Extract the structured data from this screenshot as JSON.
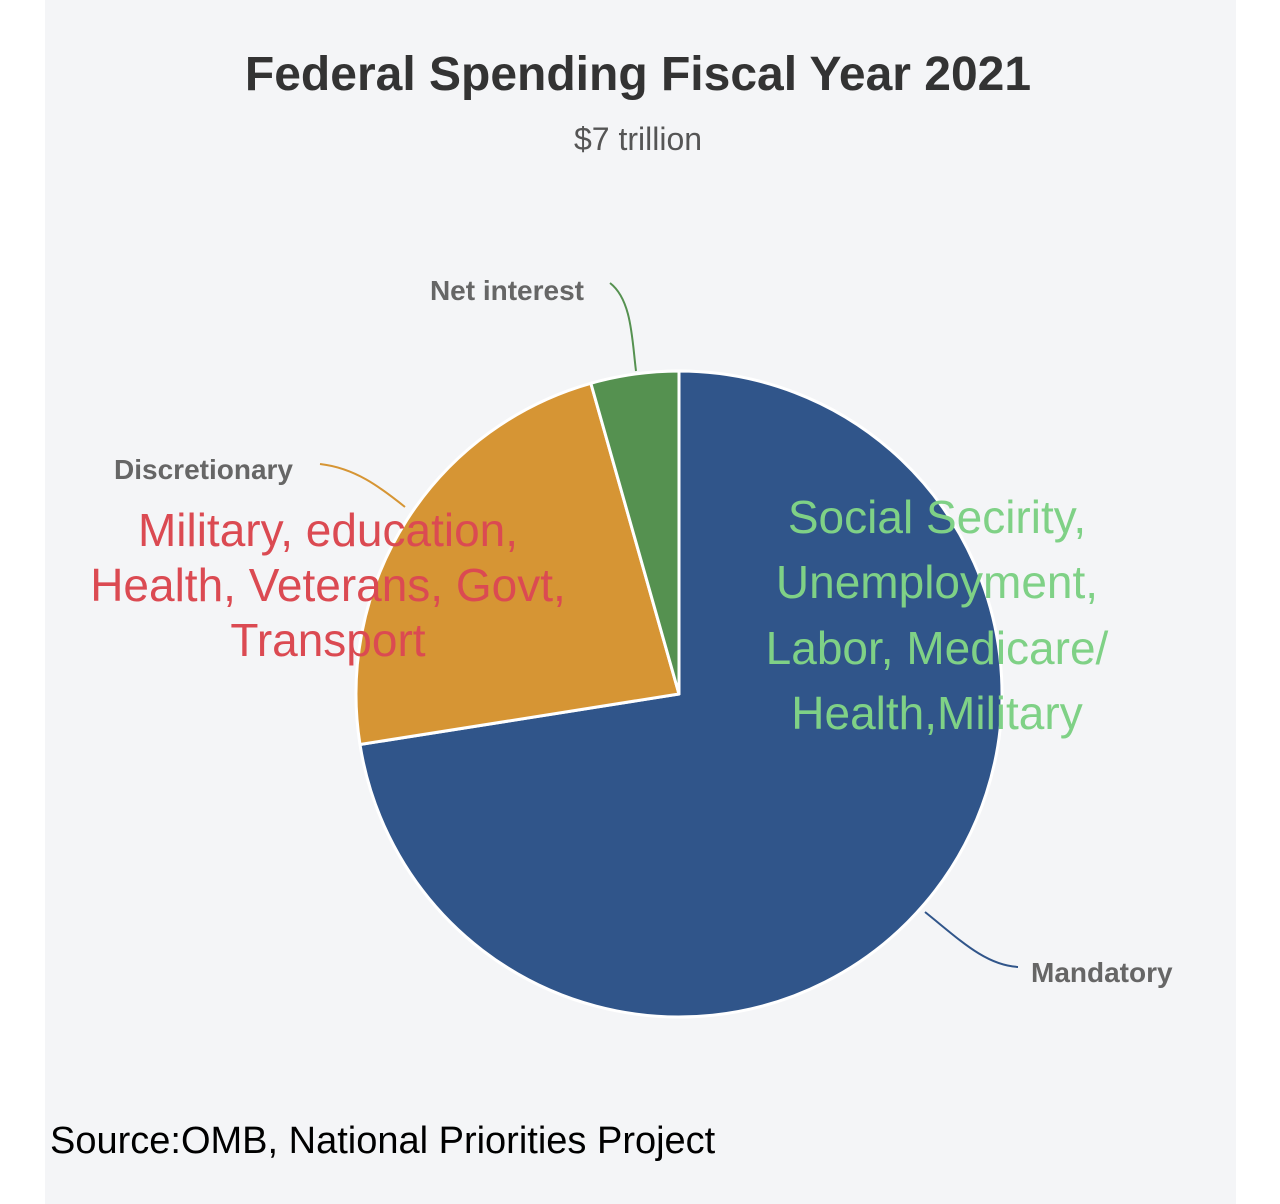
{
  "chart_data": {
    "type": "pie",
    "title": "Federal Spending Fiscal Year 2021",
    "subtitle": "$7 trillion",
    "slices": [
      {
        "name": "Mandatory",
        "value": 72.5,
        "color": "#30558a"
      },
      {
        "name": "Discretionary",
        "value": 23.1,
        "color": "#d69534"
      },
      {
        "name": "Net interest",
        "value": 4.4,
        "color": "#559150"
      }
    ],
    "annotations": {
      "discretionary_note": [
        "Military, education,",
        "Health, Veterans, Govt,",
        "Transport"
      ],
      "mandatory_note": [
        "Social Secirity,",
        "Unemployment,",
        "Labor, Medicare/",
        "Health,Military"
      ]
    },
    "annotation_colors": {
      "discretionary_note": "#db4a52",
      "mandatory_note": "#7fd186"
    }
  },
  "source": "Source:OMB, National Priorities Project"
}
